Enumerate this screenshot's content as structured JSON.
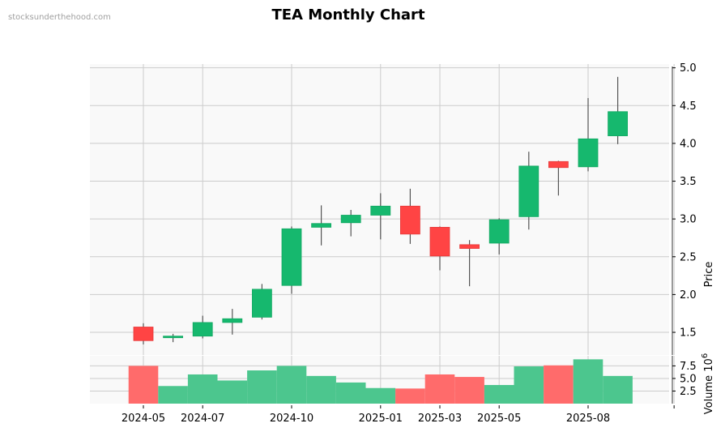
{
  "watermark": "stocksunderthehood.com",
  "colors": {
    "up": "#16b86e",
    "down": "#ff4444",
    "up_volume": "#4cc68e",
    "down_volume": "#ff6b6b",
    "wick": "#555555",
    "grid": "#cccccc",
    "panel_bg": "#f9f9f9"
  },
  "chart_data": {
    "type": "candlestick",
    "title": "TEA Monthly Chart",
    "ylabel": "Price",
    "volume_label": "Volume",
    "volume_exponent": "6",
    "ylim": [
      1.2,
      5.05
    ],
    "volume_ylim": [
      0,
      9.5
    ],
    "x_tick_labels": [
      "2024-05",
      "2024-07",
      "2024-10",
      "2025-01",
      "2025-03",
      "2025-05",
      "2025-08"
    ],
    "y_tick_labels": [
      "1.5",
      "2.0",
      "2.5",
      "3.0",
      "3.5",
      "4.0",
      "4.5",
      "5.0"
    ],
    "volume_tick_labels": [
      "2.5",
      "5.0",
      "7.5"
    ],
    "grid": true,
    "candles": [
      {
        "date": "2024-05",
        "open": 1.57,
        "high": 1.62,
        "low": 1.34,
        "close": 1.39,
        "volume": 7.5
      },
      {
        "date": "2024-06",
        "open": 1.43,
        "high": 1.48,
        "low": 1.37,
        "close": 1.45,
        "volume": 3.5
      },
      {
        "date": "2024-07",
        "open": 1.45,
        "high": 1.72,
        "low": 1.42,
        "close": 1.63,
        "volume": 5.8
      },
      {
        "date": "2024-08",
        "open": 1.63,
        "high": 1.81,
        "low": 1.47,
        "close": 1.68,
        "volume": 4.6
      },
      {
        "date": "2024-09",
        "open": 1.7,
        "high": 2.14,
        "low": 1.67,
        "close": 2.07,
        "volume": 6.6
      },
      {
        "date": "2024-10",
        "open": 2.12,
        "high": 2.9,
        "low": 2.01,
        "close": 2.87,
        "volume": 7.5
      },
      {
        "date": "2024-11",
        "open": 2.89,
        "high": 3.18,
        "low": 2.65,
        "close": 2.94,
        "volume": 5.5
      },
      {
        "date": "2024-12",
        "open": 2.95,
        "high": 3.12,
        "low": 2.77,
        "close": 3.05,
        "volume": 4.2
      },
      {
        "date": "2025-01",
        "open": 3.05,
        "high": 3.34,
        "low": 2.73,
        "close": 3.17,
        "volume": 3.1
      },
      {
        "date": "2025-02",
        "open": 3.17,
        "high": 3.4,
        "low": 2.67,
        "close": 2.8,
        "volume": 3.0
      },
      {
        "date": "2025-03",
        "open": 2.89,
        "high": 2.9,
        "low": 2.32,
        "close": 2.51,
        "volume": 5.8
      },
      {
        "date": "2025-04",
        "open": 2.66,
        "high": 2.72,
        "low": 2.11,
        "close": 2.61,
        "volume": 5.3
      },
      {
        "date": "2025-05",
        "open": 2.68,
        "high": 3.01,
        "low": 2.53,
        "close": 2.99,
        "volume": 3.7
      },
      {
        "date": "2025-06",
        "open": 3.03,
        "high": 3.89,
        "low": 2.86,
        "close": 3.7,
        "volume": 7.4
      },
      {
        "date": "2025-07",
        "open": 3.76,
        "high": 3.77,
        "low": 3.31,
        "close": 3.68,
        "volume": 7.6
      },
      {
        "date": "2025-08",
        "open": 3.69,
        "high": 4.6,
        "low": 3.63,
        "close": 4.06,
        "volume": 8.8
      },
      {
        "date": "2025-09",
        "open": 4.1,
        "high": 4.88,
        "low": 3.99,
        "close": 4.42,
        "volume": 5.5
      }
    ]
  }
}
